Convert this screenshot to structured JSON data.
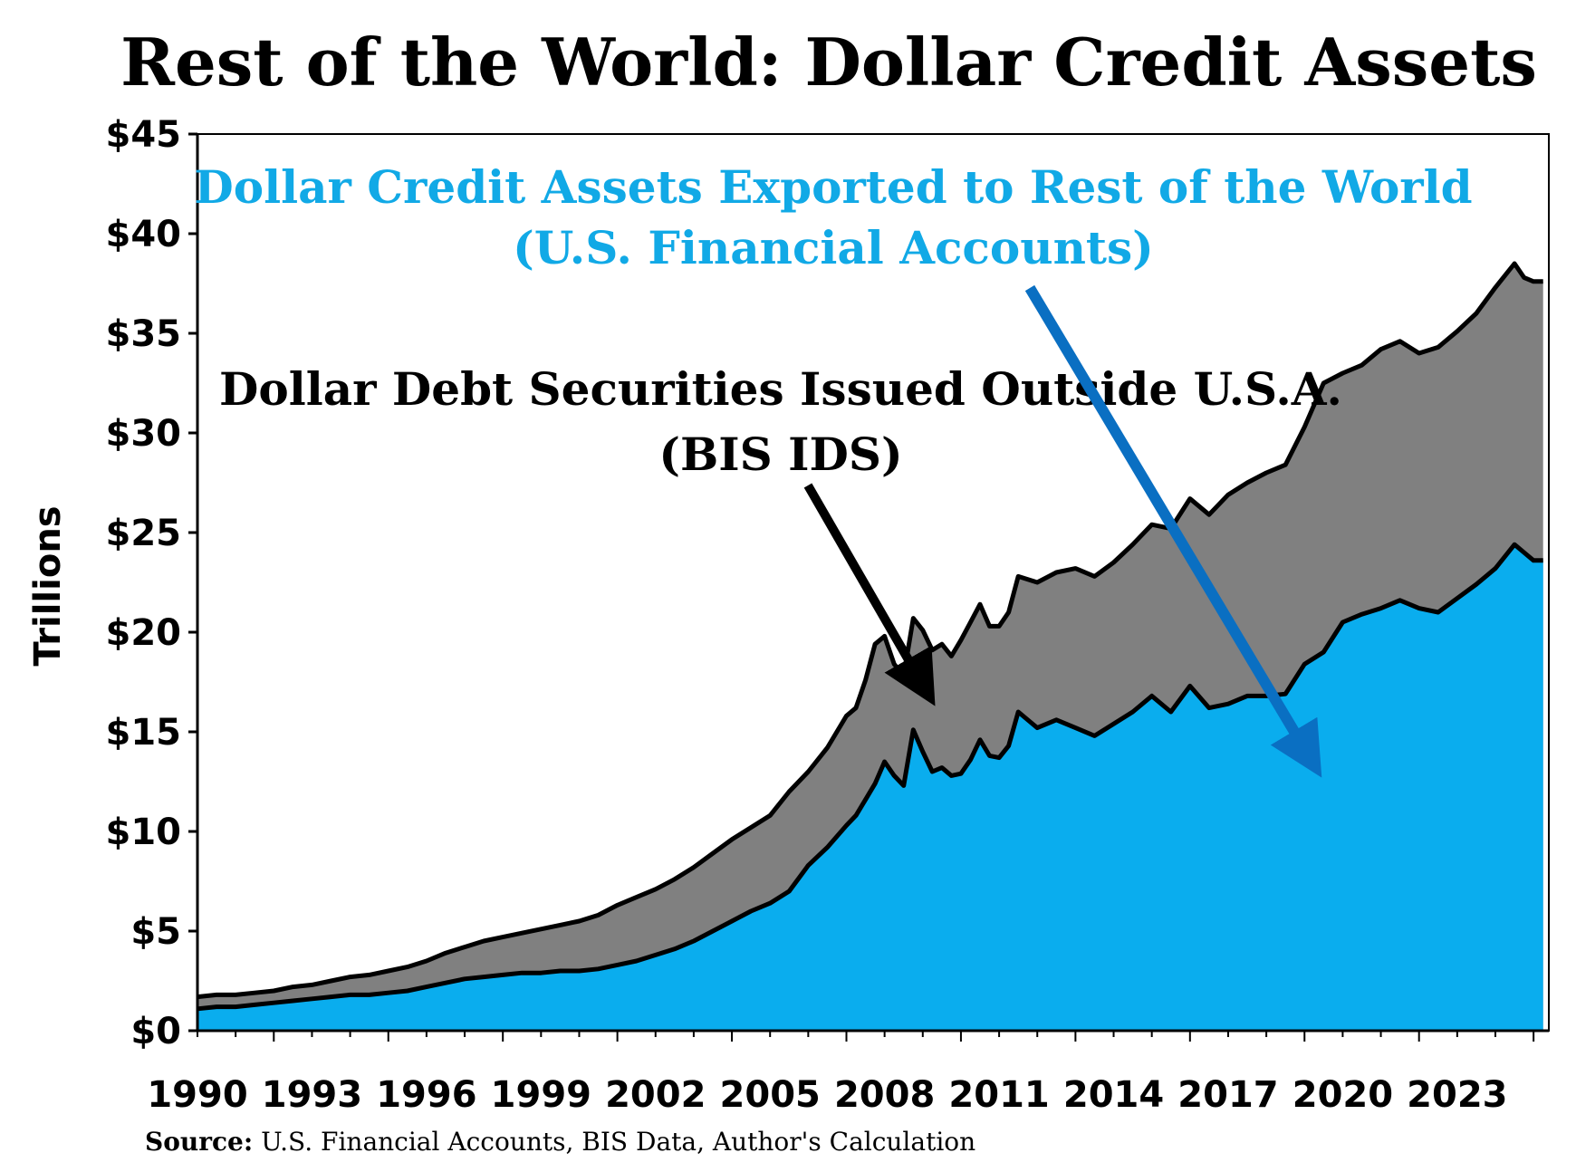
{
  "chart_data": {
    "type": "area",
    "title": "Rest of the World: Dollar Credit Assets",
    "ylabel": "Trillions",
    "xlabel": "",
    "ylim": [
      0,
      45
    ],
    "xlim": [
      1990,
      2025.4
    ],
    "y_ticks": [
      0,
      5,
      10,
      15,
      20,
      25,
      30,
      35,
      40,
      45
    ],
    "y_tick_labels": [
      "$0",
      "$5",
      "$10",
      "$15",
      "$20",
      "$25",
      "$30",
      "$35",
      "$40",
      "$45"
    ],
    "x_ticks": [
      1990,
      1993,
      1996,
      1999,
      2002,
      2005,
      2008,
      2011,
      2014,
      2017,
      2020,
      2023
    ],
    "x_tick_labels": [
      "1990",
      "1993",
      "1996",
      "1999",
      "2002",
      "2005",
      "2008",
      "2011",
      "2014",
      "2017",
      "2020",
      "2023"
    ],
    "grid": false,
    "legend": "none",
    "stacked": true,
    "x": [
      1990,
      1990.5,
      1991,
      1991.5,
      1992,
      1992.5,
      1993,
      1993.5,
      1994,
      1994.5,
      1995,
      1995.5,
      1996,
      1996.5,
      1997,
      1997.5,
      1998,
      1998.5,
      1999,
      1999.5,
      2000,
      2000.5,
      2001,
      2001.5,
      2002,
      2002.5,
      2003,
      2003.5,
      2004,
      2004.5,
      2005,
      2005.5,
      2006,
      2006.5,
      2007,
      2007.25,
      2007.5,
      2007.75,
      2008,
      2008.25,
      2008.5,
      2008.75,
      2009,
      2009.25,
      2009.5,
      2009.75,
      2010,
      2010.25,
      2010.5,
      2010.75,
      2011,
      2011.25,
      2011.5,
      2012,
      2012.5,
      2013,
      2013.5,
      2014,
      2014.5,
      2015,
      2015.5,
      2016,
      2016.5,
      2017,
      2017.5,
      2018,
      2018.5,
      2019,
      2019.5,
      2020,
      2020.5,
      2021,
      2021.5,
      2022,
      2022.5,
      2023,
      2023.5,
      2024,
      2024.5,
      2024.75,
      2025,
      2025.25
    ],
    "series": [
      {
        "name": "Dollar Credit Assets Exported to Rest of the World (U.S. Financial Accounts)",
        "color": "#0aadee",
        "values": [
          1.1,
          1.2,
          1.2,
          1.3,
          1.4,
          1.5,
          1.6,
          1.7,
          1.8,
          1.8,
          1.9,
          2.0,
          2.2,
          2.4,
          2.6,
          2.7,
          2.8,
          2.9,
          2.9,
          3.0,
          3.0,
          3.1,
          3.3,
          3.5,
          3.8,
          4.1,
          4.5,
          5.0,
          5.5,
          6.0,
          6.4,
          7.0,
          8.3,
          9.2,
          10.3,
          10.8,
          11.6,
          12.4,
          13.5,
          12.8,
          12.3,
          15.1,
          14.0,
          13.0,
          13.2,
          12.8,
          12.9,
          13.6,
          14.6,
          13.8,
          13.7,
          14.3,
          16.0,
          15.2,
          15.6,
          15.2,
          14.8,
          15.4,
          16.0,
          16.8,
          16.0,
          17.3,
          16.2,
          16.4,
          16.8,
          16.8,
          16.9,
          18.4,
          19.0,
          20.5,
          20.9,
          21.2,
          21.6,
          21.2,
          21.0,
          21.7,
          22.4,
          23.2,
          24.4,
          24.0,
          23.6,
          23.6
        ]
      },
      {
        "name": "Dollar Debt Securities Issued Outside U.S.A. (BIS IDS)",
        "color": "#808080",
        "total_values": [
          1.7,
          1.8,
          1.8,
          1.9,
          2.0,
          2.2,
          2.3,
          2.5,
          2.7,
          2.8,
          3.0,
          3.2,
          3.5,
          3.9,
          4.2,
          4.5,
          4.7,
          4.9,
          5.1,
          5.3,
          5.5,
          5.8,
          6.3,
          6.7,
          7.1,
          7.6,
          8.2,
          8.9,
          9.6,
          10.2,
          10.8,
          12.0,
          13.0,
          14.2,
          15.8,
          16.2,
          17.6,
          19.4,
          19.8,
          18.4,
          17.8,
          20.7,
          20.1,
          19.1,
          19.4,
          18.8,
          19.6,
          20.5,
          21.4,
          20.3,
          20.3,
          21.0,
          22.8,
          22.5,
          23.0,
          23.2,
          22.8,
          23.5,
          24.4,
          25.4,
          25.2,
          26.7,
          25.9,
          26.9,
          27.5,
          28.0,
          28.4,
          30.3,
          32.5,
          33.0,
          33.4,
          34.2,
          34.6,
          34.0,
          34.3,
          35.1,
          36.0,
          37.3,
          38.5,
          37.8,
          37.6,
          37.6
        ]
      }
    ],
    "annotations": {
      "blue_line1": "Dollar Credit Assets Exported to Rest of the World",
      "blue_line2": "(U.S. Financial Accounts)",
      "black_line1": "Dollar Debt Securities Issued Outside U.S.A.",
      "black_line2": "(BIS IDS)"
    },
    "source_label": "Source:",
    "source_text": " U.S. Financial Accounts, BIS Data, Author's Calculation",
    "colors": {
      "blue_area": "#0aadee",
      "gray_area": "#808080",
      "blue_arrow": "#0a6fc2",
      "blue_text": "#11a9e6",
      "black": "#000000"
    }
  }
}
